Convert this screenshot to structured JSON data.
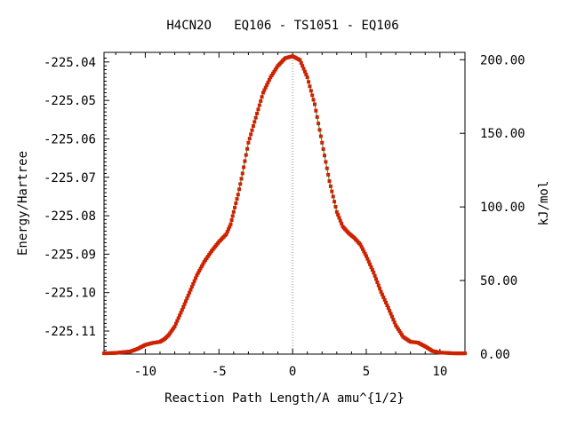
{
  "chart_data": {
    "type": "line",
    "title": "H4CN2O   EQ106 - TS1051 - EQ106",
    "xlabel": "Reaction Path Length/A amu^{1/2}",
    "ylabel": "Energy/Hartree",
    "y2label": "kJ/mol",
    "xlim": [
      -12.8,
      11.7
    ],
    "ylim": [
      -225.116,
      -225.0375
    ],
    "y2lim": [
      0,
      205.0
    ],
    "x_ticks": [
      -10,
      -5,
      0,
      5,
      10
    ],
    "x_tick_labels": [
      "-10",
      "-5",
      "0",
      "5",
      "10"
    ],
    "y_ticks": [
      -225.04,
      -225.05,
      -225.06,
      -225.07,
      -225.08,
      -225.09,
      -225.1,
      -225.11
    ],
    "y_tick_labels": [
      "-225.04",
      "-225.05",
      "-225.06",
      "-225.07",
      "-225.08",
      "-225.09",
      "-225.10",
      "-225.11"
    ],
    "y2_ticks": [
      200,
      150,
      100,
      50,
      0
    ],
    "y2_tick_labels": [
      "200.00",
      "150.00",
      "100.00",
      "50.00",
      "0.00"
    ],
    "ts_marker_x": 0,
    "grid": false,
    "colors": {
      "line": "#2a8a2a",
      "marker": "#cc2200",
      "ts_line": "#888888"
    },
    "series": [
      {
        "x": [
          -12.8,
          -12.0,
          -11.0,
          -10.5,
          -10.0,
          -9.5,
          -9.0,
          -8.7,
          -8.4,
          -8.0,
          -7.5,
          -7.0,
          -6.5,
          -6.0,
          -5.5,
          -5.0,
          -4.5,
          -4.2,
          -4.0,
          -3.7,
          -3.4,
          -3.0,
          -2.5,
          -2.0,
          -1.5,
          -1.0,
          -0.5,
          0.0,
          0.5,
          1.0,
          1.5,
          2.0,
          2.5,
          3.0,
          3.4,
          3.8,
          4.2,
          4.6,
          5.0,
          5.5,
          6.0,
          6.5,
          7.0,
          7.5,
          8.0,
          8.5,
          9.0,
          9.5,
          10.0,
          10.5,
          11.0,
          11.7
        ],
        "y": [
          -225.1158,
          -225.1157,
          -225.1153,
          -225.1146,
          -225.1136,
          -225.1131,
          -225.1128,
          -225.1121,
          -225.111,
          -225.1088,
          -225.1045,
          -225.1,
          -225.0955,
          -225.092,
          -225.0892,
          -225.0868,
          -225.0848,
          -225.0822,
          -225.079,
          -225.0745,
          -225.069,
          -225.061,
          -225.0545,
          -225.048,
          -225.044,
          -225.041,
          -225.039,
          -225.0385,
          -225.0395,
          -225.044,
          -225.051,
          -225.061,
          -225.071,
          -225.079,
          -225.0828,
          -225.0845,
          -225.0858,
          -225.0875,
          -225.0905,
          -225.0948,
          -225.0998,
          -225.104,
          -225.1085,
          -225.1115,
          -225.1128,
          -225.113,
          -225.114,
          -225.1152,
          -225.1156,
          -225.1157,
          -225.1158,
          -225.1158
        ]
      }
    ]
  }
}
